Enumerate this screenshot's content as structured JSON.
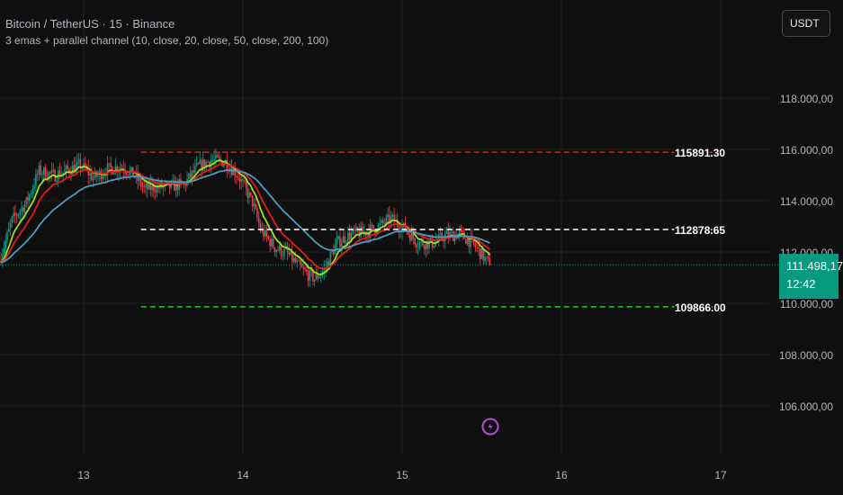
{
  "header": {
    "symbol_title": "Bitcoin / TetherUS · 15 · Binance",
    "indicator_legend": "3 emas + parallel channel (10, close, 20, close, 50, close, 200, 100)",
    "currency_button": "USDT"
  },
  "price_badge": {
    "price": "111.498,17",
    "countdown": "12:42",
    "color": "#089981"
  },
  "icons": {
    "event_marker": "lightning-bolt-icon"
  },
  "chart_data": {
    "type": "line",
    "x_unit": "day of month",
    "xticks": [
      13,
      14,
      15,
      16,
      17
    ],
    "xtick_labels": [
      "13",
      "14",
      "15",
      "16",
      "17"
    ],
    "xlim": [
      12.47,
      17.3
    ],
    "ylim": [
      104600,
      119800
    ],
    "yticks": [
      106000,
      108000,
      110000,
      112000,
      114000,
      116000,
      118000
    ],
    "ytick_labels": [
      "106.000,00",
      "108.000,00",
      "110.000,00",
      "112.000,00",
      "114.000,00",
      "116.000,00",
      "118.000,00"
    ],
    "grid": true,
    "price_series": {
      "style": "candlestick",
      "up_color": "#089981",
      "down_color": "#f23645",
      "close_points": [
        [
          12.47,
          111650
        ],
        [
          12.55,
          113230
        ],
        [
          12.64,
          113930
        ],
        [
          12.72,
          115160
        ],
        [
          12.81,
          114980
        ],
        [
          12.89,
          115160
        ],
        [
          12.98,
          115400
        ],
        [
          13.06,
          114880
        ],
        [
          13.15,
          115230
        ],
        [
          13.24,
          115330
        ],
        [
          13.32,
          114980
        ],
        [
          13.38,
          114460
        ],
        [
          13.46,
          114530
        ],
        [
          13.55,
          114560
        ],
        [
          13.63,
          114630
        ],
        [
          13.72,
          115330
        ],
        [
          13.8,
          115580
        ],
        [
          13.89,
          115510
        ],
        [
          13.97,
          114980
        ],
        [
          14.06,
          113930
        ],
        [
          14.11,
          112880
        ],
        [
          14.2,
          112170
        ],
        [
          14.28,
          111930
        ],
        [
          14.37,
          111300
        ],
        [
          14.45,
          110950
        ],
        [
          14.51,
          111300
        ],
        [
          14.59,
          112350
        ],
        [
          14.68,
          112700
        ],
        [
          14.76,
          112770
        ],
        [
          14.85,
          112980
        ],
        [
          14.93,
          113300
        ],
        [
          15.02,
          112880
        ],
        [
          15.1,
          112350
        ],
        [
          15.19,
          112350
        ],
        [
          15.27,
          112630
        ],
        [
          15.36,
          112700
        ],
        [
          15.44,
          112350
        ],
        [
          15.53,
          111650
        ],
        [
          15.55,
          111498.17
        ]
      ],
      "current_price": 111498.17
    },
    "ema_series": [
      {
        "period": 10,
        "color": "#9fe01f"
      },
      {
        "period": 20,
        "color": "#e51c1c"
      },
      {
        "period": 50,
        "color": "#4c9ac1"
      }
    ],
    "channel": {
      "x_range": [
        13.36,
        16.95
      ],
      "lines": [
        {
          "value": 115891.3,
          "label": "115891.30",
          "color": "#e51c1c"
        },
        {
          "value": 112878.65,
          "label": "112878.65",
          "color": "#ffffff"
        },
        {
          "value": 109866.0,
          "label": "109866.00",
          "color": "#20d020"
        }
      ]
    }
  }
}
